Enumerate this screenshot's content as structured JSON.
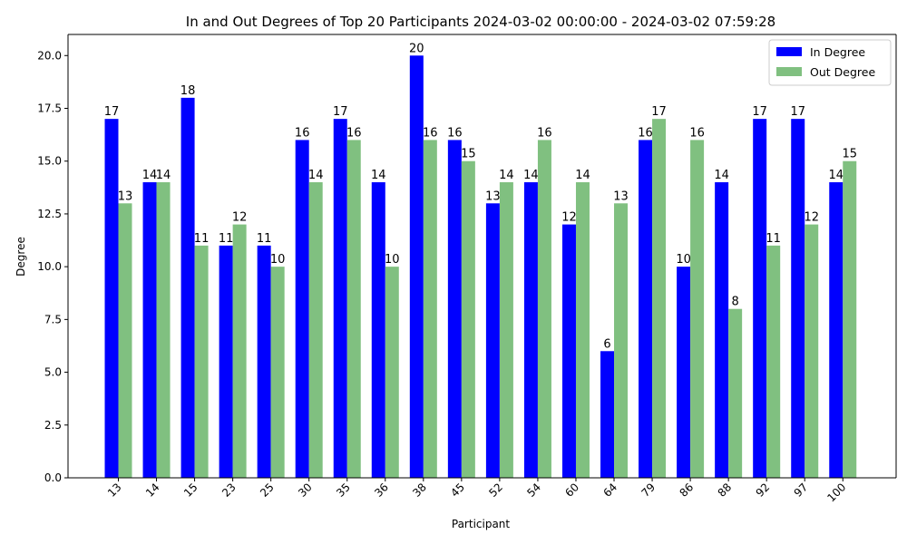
{
  "chart_data": {
    "type": "bar",
    "title": "In and Out Degrees of Top 20 Participants 2024-03-02 00:00:00 - 2024-03-02 07:59:28",
    "xlabel": "Participant",
    "ylabel": "Degree",
    "categories": [
      "13",
      "14",
      "15",
      "23",
      "25",
      "30",
      "35",
      "36",
      "38",
      "45",
      "52",
      "54",
      "60",
      "64",
      "79",
      "86",
      "88",
      "92",
      "97",
      "100"
    ],
    "series": [
      {
        "name": "In Degree",
        "color": "#0000ff",
        "values": [
          17,
          14,
          18,
          11,
          11,
          16,
          17,
          14,
          20,
          16,
          13,
          14,
          12,
          6,
          16,
          10,
          14,
          17,
          17,
          14
        ]
      },
      {
        "name": "Out Degree",
        "color": "#80c080",
        "values": [
          13,
          14,
          11,
          12,
          10,
          14,
          16,
          10,
          16,
          15,
          14,
          16,
          14,
          13,
          17,
          16,
          8,
          11,
          12,
          15
        ]
      }
    ],
    "ylim": [
      0,
      21
    ],
    "yticks": [
      0.0,
      2.5,
      5.0,
      7.5,
      10.0,
      12.5,
      15.0,
      17.5,
      20.0
    ],
    "ytick_labels": [
      "0.0",
      "2.5",
      "5.0",
      "7.5",
      "10.0",
      "12.5",
      "15.0",
      "17.5",
      "20.0"
    ],
    "grid": false,
    "legend_position": "top-right",
    "data_labels": true
  }
}
